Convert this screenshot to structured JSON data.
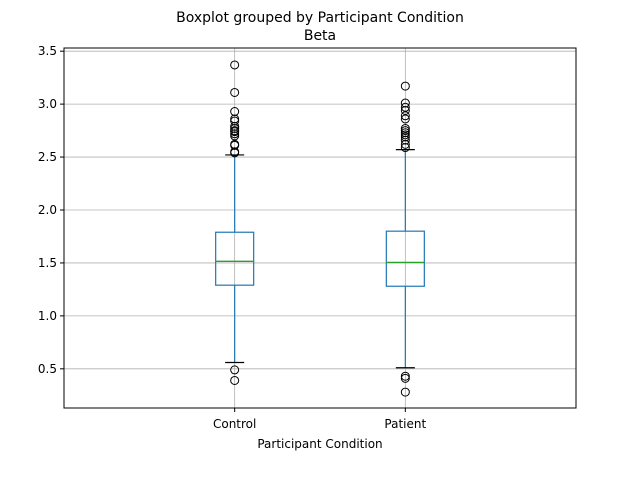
{
  "chart_data": {
    "type": "box",
    "title": "Boxplot grouped by Participant Condition",
    "subtitle": "Beta",
    "xlabel": "Participant Condition",
    "ylabel": "",
    "ylim": [
      0.13,
      3.53
    ],
    "yticks": [
      0.5,
      1.0,
      1.5,
      2.0,
      2.5,
      3.0,
      3.5
    ],
    "ytick_labels": [
      "0.5",
      "1.0",
      "1.5",
      "2.0",
      "2.5",
      "3.0",
      "3.5"
    ],
    "grid": true,
    "categories": [
      "Control",
      "Patient"
    ],
    "boxes": [
      {
        "name": "Control",
        "whisker_low": 0.56,
        "q1": 1.29,
        "median": 1.515,
        "q3": 1.79,
        "whisker_high": 2.52,
        "outliers": [
          0.39,
          0.49,
          2.54,
          2.55,
          2.61,
          2.62,
          2.7,
          2.72,
          2.74,
          2.75,
          2.77,
          2.79,
          2.84,
          2.86,
          2.93,
          3.11,
          3.37
        ]
      },
      {
        "name": "Patient",
        "whisker_low": 0.51,
        "q1": 1.28,
        "median": 1.505,
        "q3": 1.8,
        "whisker_high": 2.57,
        "outliers": [
          0.28,
          0.41,
          0.43,
          2.59,
          2.62,
          2.66,
          2.69,
          2.71,
          2.73,
          2.75,
          2.77,
          2.86,
          2.89,
          2.94,
          2.97,
          3.01,
          3.17
        ]
      }
    ],
    "colors": {
      "box": "#1f77b4",
      "median": "#2ca02c",
      "flier": "#000000",
      "grid": "#b0b0b0"
    }
  }
}
